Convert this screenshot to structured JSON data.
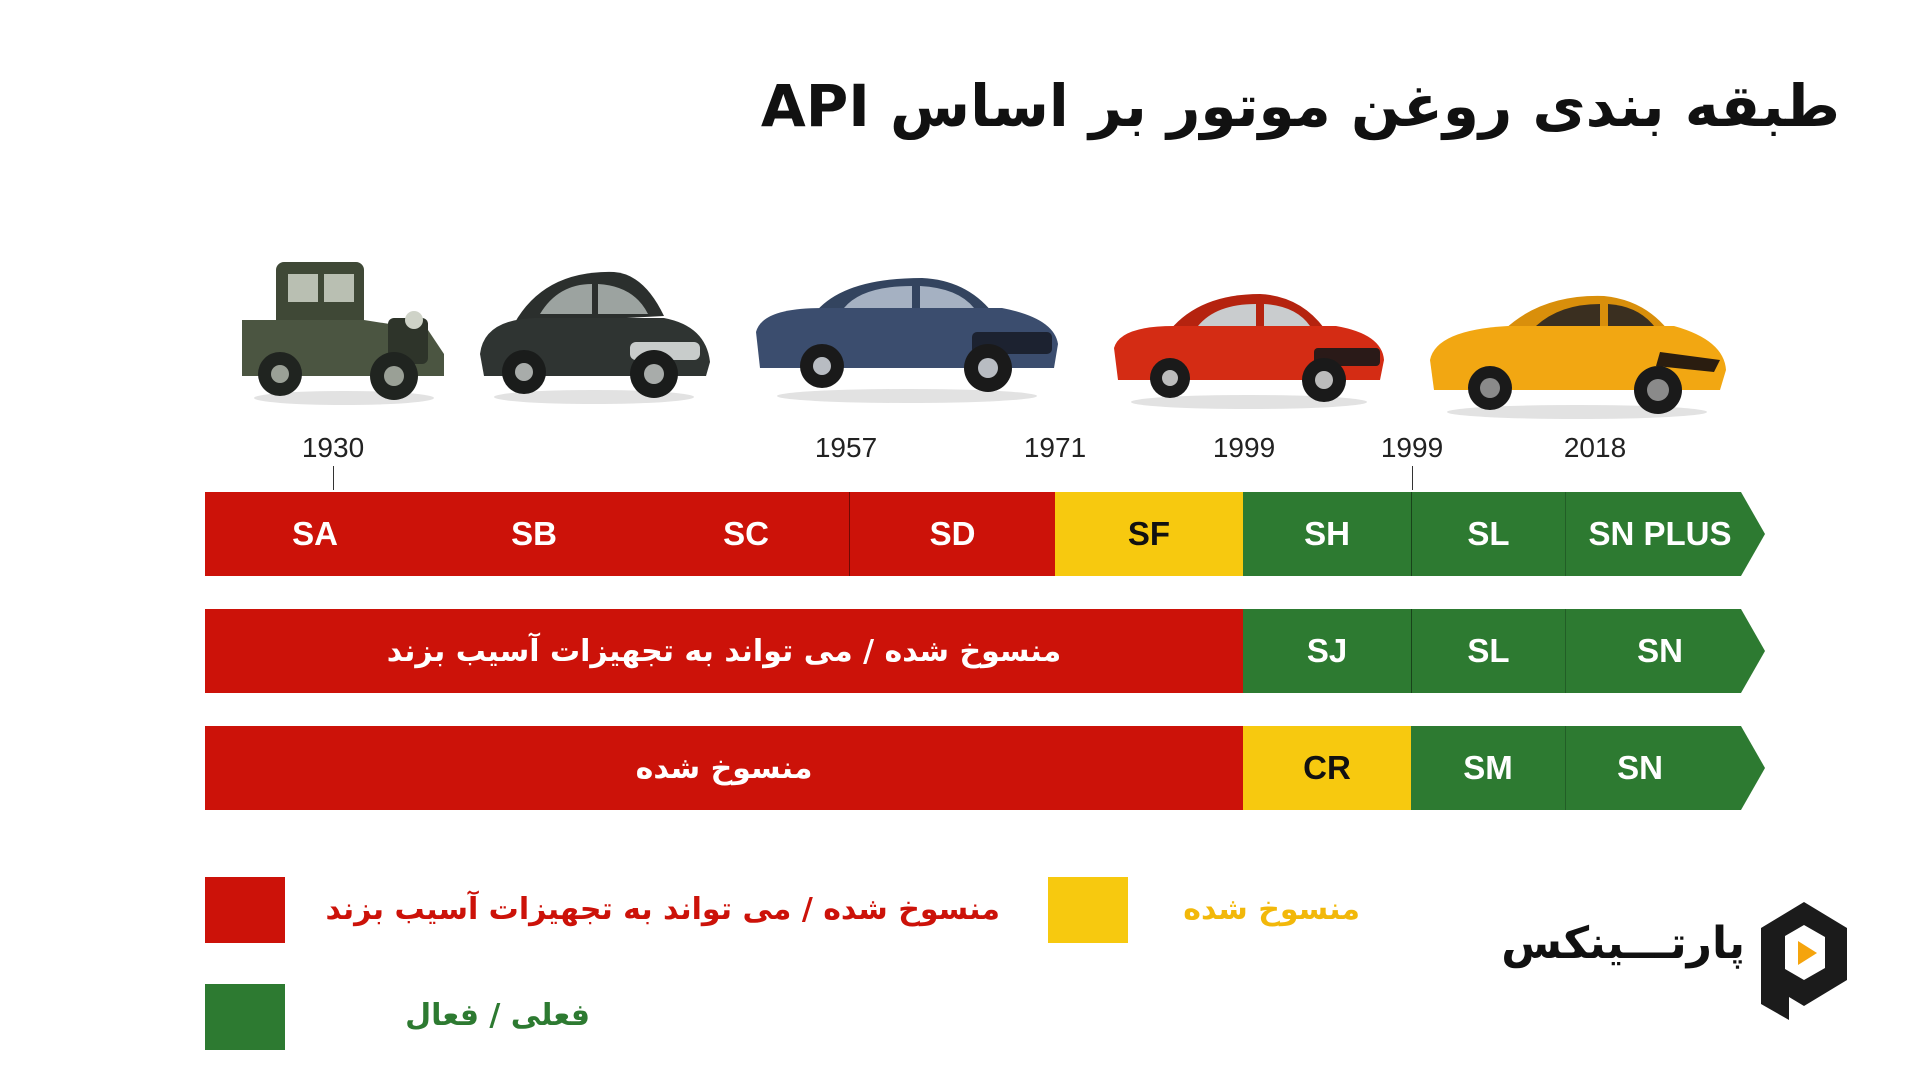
{
  "title": "طبقه بندی روغن موتور بر اساس API",
  "cars": [
    {
      "name": "1930s pickup",
      "color": "#4b5541"
    },
    {
      "name": "1940s sedan",
      "color": "#2f3432"
    },
    {
      "name": "1960s coupe",
      "color": "#3b4d6e"
    },
    {
      "name": "1970s muscle car",
      "color": "#d42c14"
    },
    {
      "name": "modern sports car",
      "color": "#f2a712"
    }
  ],
  "years": [
    "1930",
    "1957",
    "1971",
    "1999",
    "1999",
    "2018"
  ],
  "rows": [
    {
      "segments": [
        {
          "label": "SA",
          "color": "red"
        },
        {
          "label": "SB",
          "color": "red"
        },
        {
          "label": "SC",
          "color": "red"
        },
        {
          "label": "SD",
          "color": "red"
        },
        {
          "label": "SF",
          "color": "yellow"
        },
        {
          "label": "SH",
          "color": "green"
        },
        {
          "label": "SL",
          "color": "green"
        },
        {
          "label": "SN PLUS",
          "color": "green"
        }
      ]
    },
    {
      "segments": [
        {
          "label": "منسوخ شده / می تواند به تجهیزات آسیب بزند",
          "color": "red"
        },
        {
          "label": "SJ",
          "color": "green"
        },
        {
          "label": "SL",
          "color": "green"
        },
        {
          "label": "SN",
          "color": "green"
        }
      ]
    },
    {
      "segments": [
        {
          "label": "منسوخ شده",
          "color": "red"
        },
        {
          "label": "CR",
          "color": "yellow"
        },
        {
          "label": "SM",
          "color": "green"
        },
        {
          "label": "SN",
          "color": "green"
        }
      ]
    }
  ],
  "legend": {
    "red": {
      "label": "منسوخ شده / می تواند به تجهیزات آسیب بزند",
      "color": "#cc1209"
    },
    "yellow": {
      "label": "منسوخ شده",
      "color": "#f7c90f"
    },
    "green": {
      "label": "فعلی / فعال",
      "color": "#2d7a31"
    }
  },
  "brand": {
    "name": "پارتـــینکس",
    "icon": "partinex-logo-icon"
  }
}
